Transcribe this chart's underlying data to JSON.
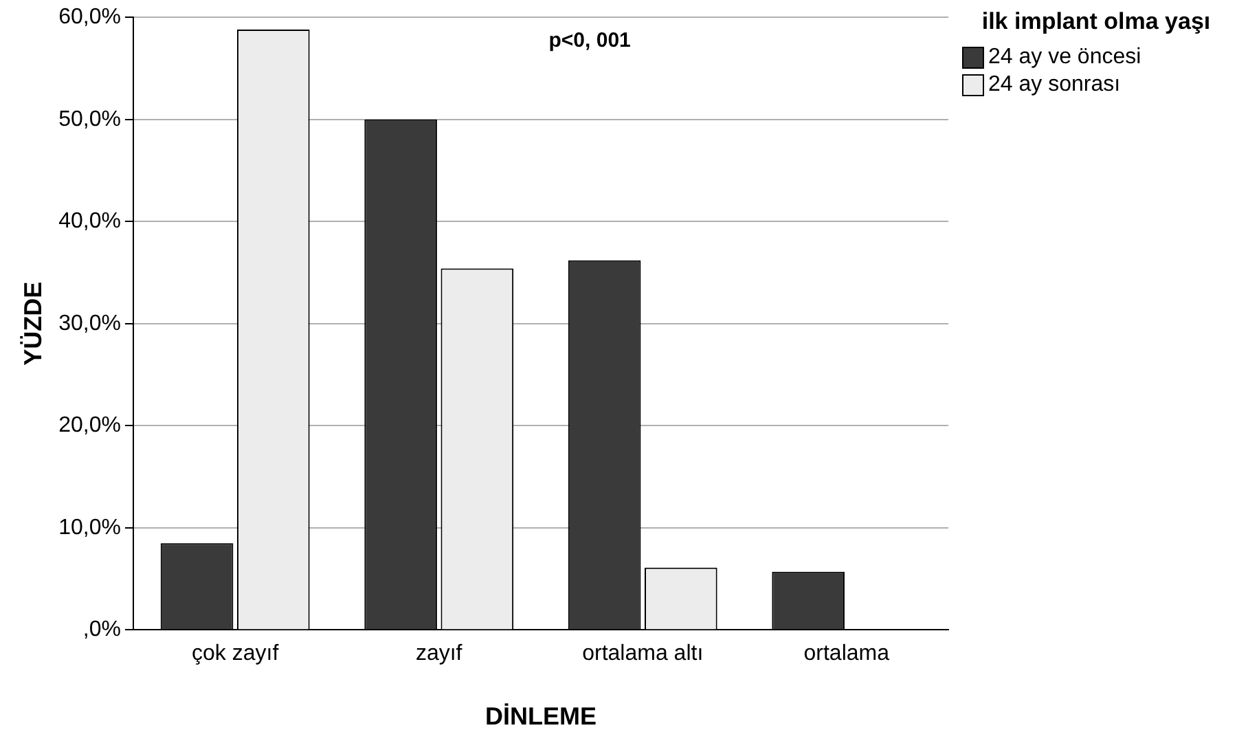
{
  "chart_data": {
    "type": "bar",
    "xlabel": "DİNLEME",
    "ylabel": "YÜZDE",
    "legend_title": "ilk implant olma yaşı",
    "categories": [
      "çok zayıf",
      "zayıf",
      "ortalama altı",
      "ortalama"
    ],
    "series": [
      {
        "name": "24 ay ve öncesi",
        "color": "#3a3a3a",
        "values": [
          8.5,
          50.0,
          36.2,
          5.7
        ]
      },
      {
        "name": "24 ay sonrası",
        "color": "#ececec",
        "values": [
          58.8,
          35.4,
          6.1,
          0
        ]
      }
    ],
    "ylim": [
      0,
      60
    ],
    "yticks": [
      {
        "value": 0,
        "label": ",0%"
      },
      {
        "value": 10,
        "label": "10,0%"
      },
      {
        "value": 20,
        "label": "20,0%"
      },
      {
        "value": 30,
        "label": "30,0%"
      },
      {
        "value": 40,
        "label": "40,0%"
      },
      {
        "value": 50,
        "label": "50,0%"
      },
      {
        "value": 60,
        "label": "60,0%"
      }
    ],
    "grid": "y",
    "legend": "top right",
    "annotations": [
      "p<0, 001"
    ]
  }
}
